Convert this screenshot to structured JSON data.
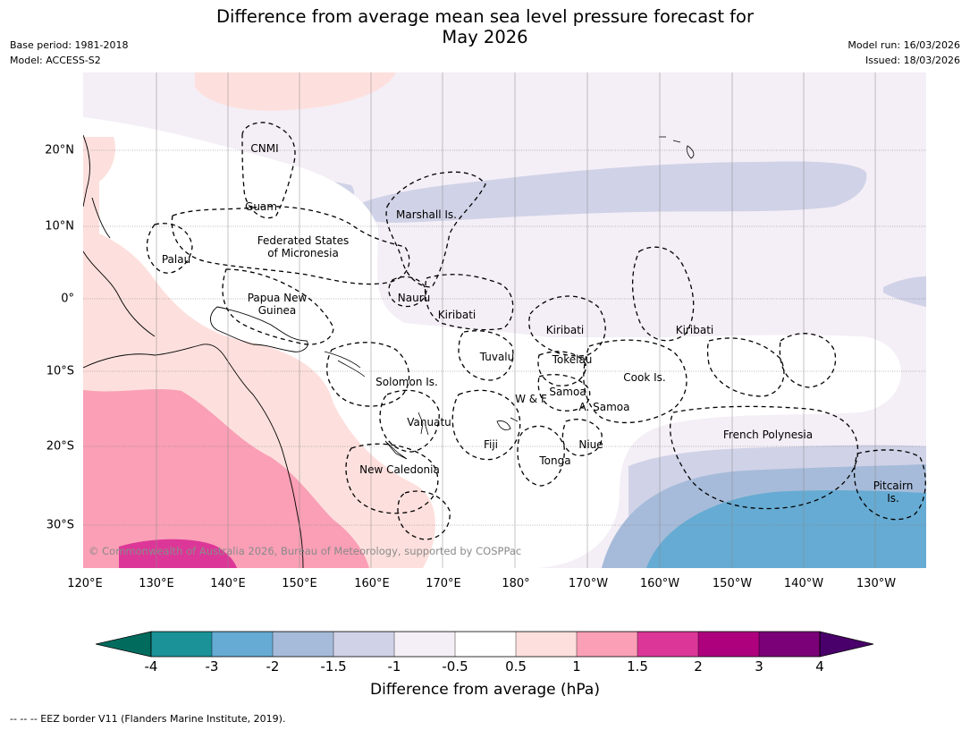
{
  "title": {
    "line1": "Difference from average mean sea level pressure forecast for",
    "line2": "May 2026"
  },
  "meta": {
    "base_period": "Base period: 1981-2018",
    "model": "Model: ACCESS-S2",
    "model_run": "Model run: 16/03/2026",
    "issued": "Issued: 18/03/2026"
  },
  "map": {
    "copyright": "© Commonwealth of Australia 2026, Bureau of Meteorology, supported by COSPPac",
    "lon_ticks": [
      "120°E",
      "130°E",
      "140°E",
      "150°E",
      "160°E",
      "170°E",
      "180°",
      "170°W",
      "160°W",
      "150°W",
      "140°W",
      "130°W"
    ],
    "lat_ticks": [
      "20°N",
      "10°N",
      "0°",
      "10°S",
      "20°S",
      "30°S"
    ],
    "labels": {
      "cnmi": "CNMI",
      "guam": "Guam",
      "marshall": "Marshall Is.",
      "fsm1": "Federated States",
      "fsm2": "of Micronesia",
      "palau": "Palau",
      "nauru": "Nauru",
      "png1": "Papua New",
      "png2": "Guinea",
      "kiribati_w": "Kiribati",
      "kiribati_c": "Kiribati",
      "kiribati_e": "Kiribati",
      "tuvalu": "Tuvalu",
      "tokelau": "Tokelau",
      "cook": "Cook Is.",
      "solomon": "Solomon Is.",
      "wf": "W & F",
      "samoa": "Samoa",
      "asamoa": "A. Samoa",
      "vanuatu": "Vanuatu",
      "fiji": "Fiji",
      "niue": "Niue",
      "tonga": "Tonga",
      "frenchpoly": "French Polynesia",
      "newcal": "New Caledonia",
      "pitcairn1": "Pitcairn",
      "pitcairn2": "Is."
    }
  },
  "colorbar": {
    "label": "Difference from average (hPa)",
    "ticks": [
      "-4",
      "-3",
      "-2",
      "-1.5",
      "-1",
      "-0.5",
      "0.5",
      "1",
      "1.5",
      "2",
      "3",
      "4"
    ],
    "colors": {
      "below_min": "#016c5e",
      "bins": [
        "#1a9298",
        "#66abd3",
        "#a6bbd9",
        "#d0d2e7",
        "#f4eef6",
        "#ffffff",
        "#fde0dd",
        "#fa9fb6",
        "#dc3798",
        "#ae017e",
        "#7a0177"
      ],
      "above_max": "#49006a"
    }
  },
  "footnote": "--  --  -- EEZ border V11 (Flanders Marine Institute, 2019)."
}
